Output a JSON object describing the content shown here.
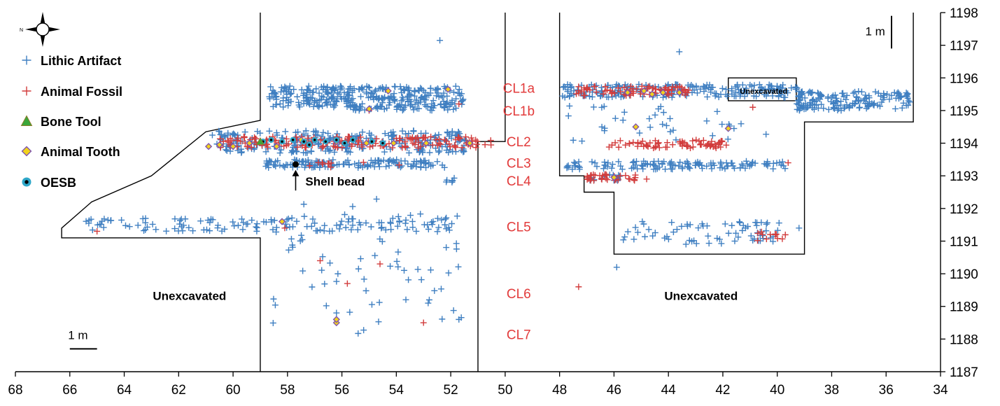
{
  "chart_data": {
    "type": "scatter",
    "title": "",
    "xlabel": "",
    "ylabel": "",
    "xlim": [
      68,
      34
    ],
    "ylim": [
      1187,
      1198
    ],
    "x_ticks": [
      "68",
      "66",
      "64",
      "62",
      "60",
      "58",
      "56",
      "54",
      "52",
      "50",
      "48",
      "46",
      "44",
      "42",
      "40",
      "38",
      "36",
      "34"
    ],
    "y_ticks": [
      "1187",
      "1188",
      "1189",
      "1190",
      "1191",
      "1192",
      "1193",
      "1194",
      "1195",
      "1196",
      "1197",
      "1198"
    ],
    "legend": {
      "placement": "top-left",
      "entries": [
        {
          "label": "Lithic Artifact",
          "marker": "plus",
          "color": "#3f7fc1"
        },
        {
          "label": "Animal Fossil",
          "marker": "plus",
          "color": "#d23c3c"
        },
        {
          "label": "Bone Tool",
          "marker": "triangle",
          "color": "#3aa63a"
        },
        {
          "label": "Animal Tooth",
          "marker": "diamond",
          "color": "#f1d21d"
        },
        {
          "label": "OESB",
          "marker": "circle",
          "color": "#2ea7c9"
        }
      ]
    },
    "layer_labels": [
      {
        "label": "CL1a",
        "x": 49.5,
        "y": 1195.7
      },
      {
        "label": "CL1b",
        "x": 49.5,
        "y": 1195.0
      },
      {
        "label": "CL2",
        "x": 49.5,
        "y": 1194.05
      },
      {
        "label": "CL3",
        "x": 49.5,
        "y": 1193.4
      },
      {
        "label": "CL4",
        "x": 49.5,
        "y": 1192.85
      },
      {
        "label": "CL5",
        "x": 49.5,
        "y": 1191.45
      },
      {
        "label": "CL6",
        "x": 49.5,
        "y": 1189.4
      },
      {
        "label": "CL7",
        "x": 49.5,
        "y": 1188.15
      }
    ],
    "annotations": [
      {
        "text": "Shell bead",
        "x": 57.6,
        "y": 1192.7
      },
      {
        "text": "Unexcavated",
        "x": 61.6,
        "y": 1189.2
      },
      {
        "text": "Unexcavated",
        "x": 42.8,
        "y": 1189.2
      },
      {
        "text": "Unexcavated",
        "x": 40.5,
        "y": 1195.6
      },
      {
        "text": "1 m",
        "x": 65.7,
        "y": 1188.0
      },
      {
        "text": "1 m",
        "x": 36.4,
        "y": 1197.3
      }
    ],
    "excavation_boundaries": [
      [
        [
          59,
          1198
        ],
        [
          59,
          1194.7
        ],
        [
          61.0,
          1194.35
        ],
        [
          63.0,
          1193.0
        ],
        [
          65.2,
          1192.2
        ],
        [
          66.3,
          1191.4
        ],
        [
          66.3,
          1191.1
        ],
        [
          59,
          1191.1
        ],
        [
          59,
          1187
        ]
      ],
      [
        [
          50,
          1198
        ],
        [
          50,
          1194.05
        ],
        [
          51,
          1194.05
        ],
        [
          51,
          1187
        ]
      ],
      [
        [
          48,
          1198
        ],
        [
          48,
          1193.0
        ],
        [
          47.1,
          1193.0
        ],
        [
          47.1,
          1192.5
        ],
        [
          46.0,
          1192.5
        ],
        [
          46.0,
          1190.6
        ],
        [
          39,
          1190.6
        ],
        [
          39,
          1194.65
        ],
        [
          35,
          1194.65
        ],
        [
          35,
          1198
        ]
      ]
    ],
    "unexcavated_box": [
      [
        41.8,
        1195.3
      ],
      [
        41.8,
        1196.0
      ],
      [
        39.3,
        1196.0
      ],
      [
        39.3,
        1195.3
      ]
    ],
    "scale_bars": [
      {
        "from": [
          66.0,
          1187.7
        ],
        "to": [
          65.0,
          1187.7
        ]
      },
      {
        "from": [
          35.8,
          1196.9
        ],
        "to": [
          35.8,
          1197.9
        ]
      }
    ],
    "shell_bead_point": {
      "x": 57.7,
      "y": 1193.35
    },
    "series": [
      {
        "name": "Lithic Artifact",
        "clusters": [
          {
            "x": [
              58.7,
              51.5
            ],
            "y": [
              1195.1,
              1195.75
            ],
            "n": 320,
            "slope": 0.09
          },
          {
            "x": [
              55.8,
              51.8
            ],
            "y": [
              1195.0,
              1195.15
            ],
            "n": 40,
            "slope": 0
          },
          {
            "x": [
              60.8,
              51.4
            ],
            "y": [
              1193.7,
              1194.4
            ],
            "n": 280,
            "slope": 0.05
          },
          {
            "x": [
              58.8,
              52.2
            ],
            "y": [
              1193.25,
              1193.5
            ],
            "n": 140,
            "slope": 0
          },
          {
            "x": [
              52.2,
              51.6
            ],
            "y": [
              1192.8,
              1192.95
            ],
            "n": 6,
            "slope": 0
          },
          {
            "x": [
              65.7,
              51.8
            ],
            "y": [
              1191.3,
              1191.7
            ],
            "n": 130,
            "slope": 0
          },
          {
            "x": [
              58.6,
              51.6
            ],
            "y": [
              1188.1,
              1192.3
            ],
            "n": 75,
            "slope": 0
          },
          {
            "x": [
              48.0,
              39.2
            ],
            "y": [
              1195.4,
              1195.8
            ],
            "n": 220,
            "slope": 0
          },
          {
            "x": [
              39.3,
              35.1
            ],
            "y": [
              1195.0,
              1195.6
            ],
            "n": 160,
            "slope": 0
          },
          {
            "x": [
              47.5,
              39.8
            ],
            "y": [
              1194.0,
              1194.6
            ],
            "n": 20,
            "slope": 0
          },
          {
            "x": [
              47.9,
              39.6
            ],
            "y": [
              1193.2,
              1193.45
            ],
            "n": 130,
            "slope": 0
          },
          {
            "x": [
              47.0,
              45.8
            ],
            "y": [
              1192.85,
              1193.05
            ],
            "n": 16,
            "slope": 0
          },
          {
            "x": [
              45.8,
              39.6
            ],
            "y": [
              1190.9,
              1191.6
            ],
            "n": 70,
            "slope": 0
          },
          {
            "x": [
              48.0,
              42.0
            ],
            "y": [
              1194.6,
              1195.2
            ],
            "n": 16,
            "slope": 0
          }
        ],
        "points": [
          [
            52.4,
            1197.15
          ],
          [
            43.6,
            1196.8
          ],
          [
            45.9,
            1190.2
          ],
          [
            39.2,
            1191.4
          ],
          [
            51.7,
            1188.6
          ],
          [
            56.2,
            1188.8
          ]
        ]
      },
      {
        "name": "Animal Fossil",
        "clusters": [
          {
            "x": [
              60.5,
              50.5
            ],
            "y": [
              1193.85,
              1194.2
            ],
            "n": 170,
            "slope": 0.02
          },
          {
            "x": [
              47.4,
              43.2
            ],
            "y": [
              1195.45,
              1195.75
            ],
            "n": 80,
            "slope": 0
          },
          {
            "x": [
              46.3,
              41.8
            ],
            "y": [
              1193.85,
              1194.1
            ],
            "n": 70,
            "slope": 0
          },
          {
            "x": [
              47.0,
              45.2
            ],
            "y": [
              1192.85,
              1193.05
            ],
            "n": 35,
            "slope": 0
          },
          {
            "x": [
              58.2,
              53.8
            ],
            "y": [
              1193.25,
              1193.45
            ],
            "n": 10,
            "slope": 0
          },
          {
            "x": [
              40.8,
              39.7
            ],
            "y": [
              1191.0,
              1191.3
            ],
            "n": 12,
            "slope": 0
          }
        ],
        "points": [
          [
            65.0,
            1191.3
          ],
          [
            53.0,
            1188.5
          ],
          [
            55.8,
            1189.7
          ],
          [
            51.7,
            1195.2
          ],
          [
            47.3,
            1189.6
          ],
          [
            56.8,
            1190.4
          ],
          [
            54.6,
            1190.3
          ],
          [
            58.1,
            1191.4
          ],
          [
            44.8,
            1192.9
          ],
          [
            40.9,
            1195.1
          ],
          [
            39.6,
            1193.4
          ],
          [
            55.0,
            1195.0
          ]
        ]
      },
      {
        "name": "Bone Tool",
        "points": [
          [
            59.0,
            1194.05
          ]
        ]
      },
      {
        "name": "Animal Tooth",
        "points": [
          [
            60.9,
            1193.9
          ],
          [
            60.5,
            1193.95
          ],
          [
            60.0,
            1193.9
          ],
          [
            59.4,
            1194.0
          ],
          [
            58.4,
            1193.9
          ],
          [
            57.5,
            1194.1
          ],
          [
            56.2,
            1194.05
          ],
          [
            55.1,
            1194.0
          ],
          [
            54.1,
            1194.0
          ],
          [
            52.9,
            1194.0
          ],
          [
            51.3,
            1194.0
          ],
          [
            55.0,
            1195.05
          ],
          [
            54.3,
            1195.6
          ],
          [
            52.1,
            1195.65
          ],
          [
            56.2,
            1188.5
          ],
          [
            56.2,
            1188.6
          ],
          [
            45.2,
            1194.5
          ],
          [
            41.8,
            1194.45
          ],
          [
            44.6,
            1195.5
          ],
          [
            44.2,
            1195.55
          ],
          [
            43.6,
            1195.55
          ],
          [
            46.0,
            1192.95
          ],
          [
            58.2,
            1191.6
          ],
          [
            45.5,
            1195.55
          ],
          [
            44.9,
            1195.6
          ]
        ]
      },
      {
        "name": "OESB",
        "points": [
          [
            58.9,
            1194.05
          ],
          [
            58.6,
            1194.1
          ],
          [
            58.2,
            1194.05
          ],
          [
            57.8,
            1194.1
          ],
          [
            57.4,
            1194.05
          ],
          [
            57.0,
            1194.1
          ],
          [
            56.6,
            1194.05
          ],
          [
            56.2,
            1194.1
          ],
          [
            55.6,
            1194.1
          ],
          [
            54.9,
            1194.05
          ],
          [
            54.5,
            1194.0
          ],
          [
            57.2,
            1193.95
          ],
          [
            55.9,
            1194.0
          ]
        ]
      }
    ]
  }
}
